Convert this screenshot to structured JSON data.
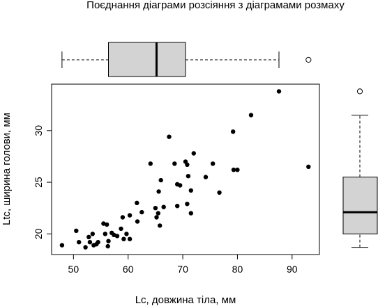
{
  "chart_data": {
    "type": "scatter",
    "title": "Поєднання діаграми розсіяння з діаграмами розмаху",
    "xlabel": "Lc, довжина тіла, мм",
    "ylabel": "Ltc, ширина голови, мм",
    "xlim": [
      46,
      95
    ],
    "ylim": [
      18,
      34.5
    ],
    "xticks": [
      50,
      60,
      70,
      80,
      90
    ],
    "yticks": [
      20,
      25,
      30
    ],
    "xtick_labels": [
      "50",
      "60",
      "70",
      "80",
      "90"
    ],
    "ytick_labels": [
      "20",
      "25",
      "30"
    ],
    "grid": false,
    "legend": "none",
    "point_color": "#000000",
    "box_fill": "#d3d3d3",
    "points": [
      [
        47.9,
        18.9
      ],
      [
        50.5,
        20.3
      ],
      [
        51.0,
        19.2
      ],
      [
        52.2,
        18.7
      ],
      [
        52.8,
        19.7
      ],
      [
        53.0,
        19.2
      ],
      [
        53.5,
        20.0
      ],
      [
        53.7,
        18.9
      ],
      [
        54.2,
        19.0
      ],
      [
        54.5,
        19.2
      ],
      [
        55.5,
        21.0
      ],
      [
        55.8,
        20.0
      ],
      [
        56.1,
        20.9
      ],
      [
        56.3,
        18.8
      ],
      [
        56.4,
        19.3
      ],
      [
        57.0,
        20.1
      ],
      [
        57.4,
        19.9
      ],
      [
        58.0,
        19.8
      ],
      [
        58.7,
        20.5
      ],
      [
        59.0,
        21.6
      ],
      [
        59.2,
        19.5
      ],
      [
        59.7,
        20.0
      ],
      [
        60.3,
        19.5
      ],
      [
        60.3,
        21.8
      ],
      [
        61.6,
        23.0
      ],
      [
        61.7,
        21.2
      ],
      [
        62.5,
        22.1
      ],
      [
        64.1,
        26.8
      ],
      [
        65.0,
        22.5
      ],
      [
        65.2,
        21.6
      ],
      [
        65.5,
        22.0
      ],
      [
        65.6,
        24.1
      ],
      [
        65.8,
        20.8
      ],
      [
        66.0,
        25.2
      ],
      [
        66.5,
        22.6
      ],
      [
        67.5,
        29.4
      ],
      [
        68.5,
        26.8
      ],
      [
        69.0,
        24.8
      ],
      [
        69.0,
        22.7
      ],
      [
        69.5,
        24.7
      ],
      [
        70.5,
        27.0
      ],
      [
        70.8,
        22.9
      ],
      [
        70.8,
        26.7
      ],
      [
        71.0,
        25.6
      ],
      [
        71.5,
        24.2
      ],
      [
        71.5,
        22.0
      ],
      [
        72.0,
        27.8
      ],
      [
        74.2,
        25.5
      ],
      [
        75.5,
        26.8
      ],
      [
        76.7,
        24.0
      ],
      [
        79.2,
        29.9
      ],
      [
        79.3,
        26.2
      ],
      [
        80.0,
        26.2
      ],
      [
        82.5,
        31.5
      ],
      [
        87.6,
        33.8
      ],
      [
        93.0,
        26.5
      ]
    ],
    "boxplot_x": {
      "min": 47.9,
      "q1": 56.4,
      "median": 65.2,
      "q3": 70.5,
      "max": 87.6,
      "outliers": [
        93.0
      ]
    },
    "boxplot_y": {
      "min": 18.7,
      "q1": 20.0,
      "median": 22.1,
      "q3": 25.5,
      "max": 31.5,
      "outliers": [
        33.8
      ]
    }
  }
}
